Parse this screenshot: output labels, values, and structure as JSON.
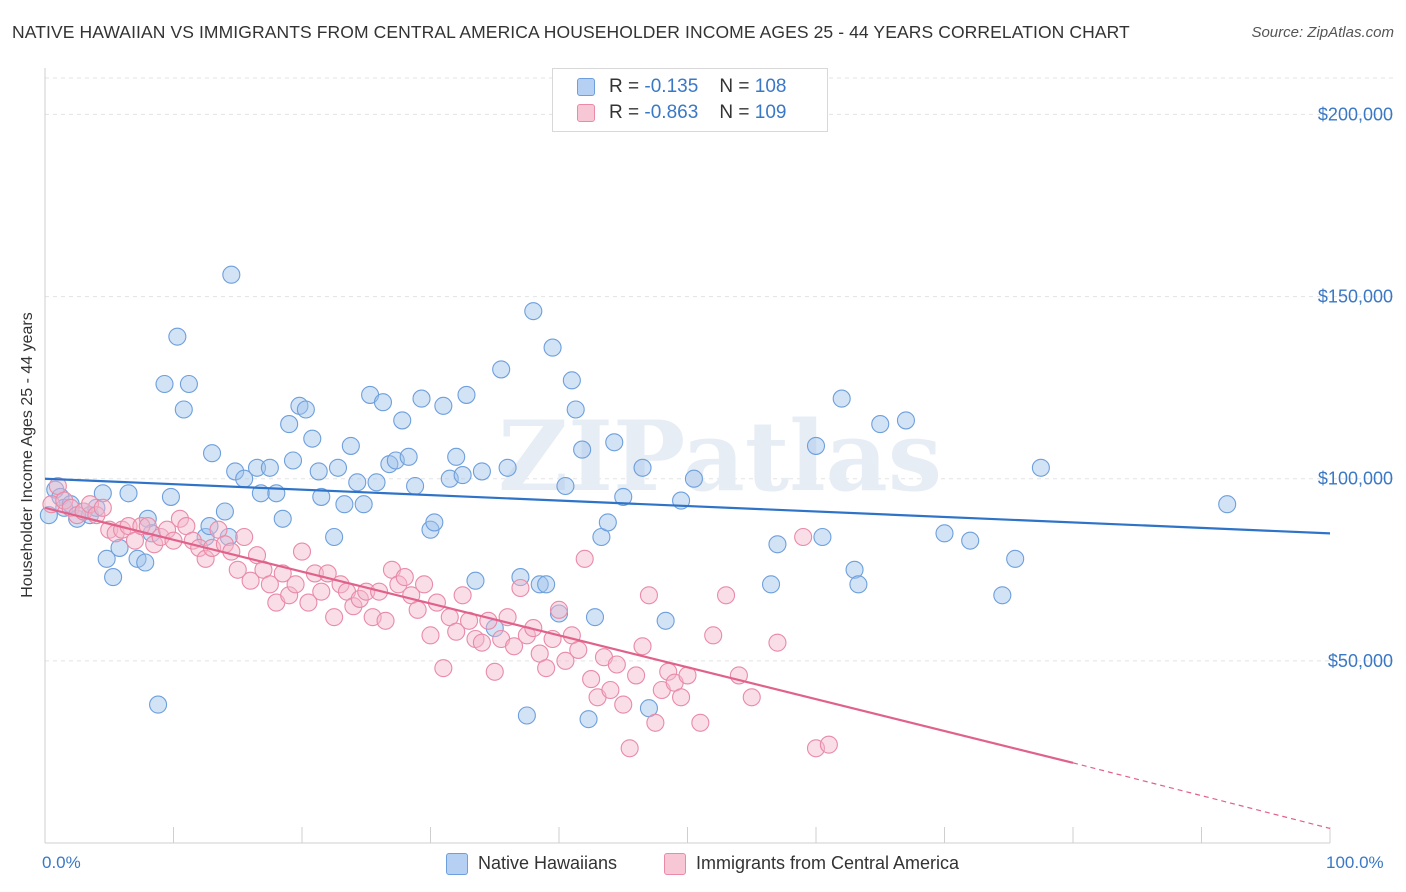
{
  "header": {
    "title": "NATIVE HAWAIIAN VS IMMIGRANTS FROM CENTRAL AMERICA HOUSEHOLDER INCOME AGES 25 - 44 YEARS CORRELATION CHART",
    "source": "Source: ZipAtlas.com"
  },
  "watermark": "ZIPatlas",
  "chart_data": {
    "type": "scatter",
    "title": "NATIVE HAWAIIAN VS IMMIGRANTS FROM CENTRAL AMERICA HOUSEHOLDER INCOME AGES 25 - 44 YEARS CORRELATION CHART",
    "xlabel": "",
    "ylabel": "Householder Income Ages 25 - 44 years",
    "xlim": [
      0,
      100
    ],
    "ylim": [
      0,
      210000
    ],
    "x_tick_labels": [
      "0.0%",
      "100.0%"
    ],
    "y_ticks": [
      50000,
      100000,
      150000,
      200000
    ],
    "y_tick_labels": [
      "$50,000",
      "$100,000",
      "$150,000",
      "$200,000"
    ],
    "grid": true,
    "legend_placement": "top-center",
    "series": [
      {
        "name": "Native Hawaiians",
        "color": "#9ec0ec",
        "edge": "#6d9fdc",
        "line_color": "#2e73c8",
        "R": "-0.135",
        "N": "108",
        "trend": {
          "x": [
            0,
            100
          ],
          "y": [
            100000,
            85000
          ]
        },
        "points": [
          [
            0.3,
            90000
          ],
          [
            0.8,
            97000
          ],
          [
            1.2,
            95000
          ],
          [
            1.5,
            92000
          ],
          [
            2,
            93000
          ],
          [
            2.5,
            89000
          ],
          [
            3,
            91000
          ],
          [
            3.5,
            90000
          ],
          [
            4,
            92000
          ],
          [
            4.5,
            96000
          ],
          [
            4.8,
            78000
          ],
          [
            5.3,
            73000
          ],
          [
            5.8,
            81000
          ],
          [
            6.5,
            96000
          ],
          [
            7.2,
            78000
          ],
          [
            7.8,
            77000
          ],
          [
            8,
            89000
          ],
          [
            8.3,
            85000
          ],
          [
            8.8,
            38000
          ],
          [
            9.3,
            126000
          ],
          [
            9.8,
            95000
          ],
          [
            10.3,
            139000
          ],
          [
            10.8,
            119000
          ],
          [
            11.2,
            126000
          ],
          [
            12.5,
            84000
          ],
          [
            12.8,
            87000
          ],
          [
            13,
            107000
          ],
          [
            14,
            91000
          ],
          [
            14.3,
            84000
          ],
          [
            14.5,
            156000
          ],
          [
            14.8,
            102000
          ],
          [
            15.5,
            100000
          ],
          [
            16.5,
            103000
          ],
          [
            16.8,
            96000
          ],
          [
            17.5,
            103000
          ],
          [
            18,
            96000
          ],
          [
            18.5,
            89000
          ],
          [
            19,
            115000
          ],
          [
            19.3,
            105000
          ],
          [
            19.8,
            120000
          ],
          [
            20.3,
            119000
          ],
          [
            20.8,
            111000
          ],
          [
            21.3,
            102000
          ],
          [
            21.5,
            95000
          ],
          [
            22.5,
            84000
          ],
          [
            22.8,
            103000
          ],
          [
            23.3,
            93000
          ],
          [
            23.8,
            109000
          ],
          [
            24.3,
            99000
          ],
          [
            24.8,
            93000
          ],
          [
            25.3,
            123000
          ],
          [
            25.8,
            99000
          ],
          [
            26.3,
            121000
          ],
          [
            26.8,
            104000
          ],
          [
            27.3,
            105000
          ],
          [
            27.8,
            116000
          ],
          [
            28.3,
            106000
          ],
          [
            28.8,
            98000
          ],
          [
            29.3,
            122000
          ],
          [
            30,
            86000
          ],
          [
            30.3,
            88000
          ],
          [
            31,
            120000
          ],
          [
            31.5,
            100000
          ],
          [
            32,
            106000
          ],
          [
            32.5,
            101000
          ],
          [
            32.8,
            123000
          ],
          [
            33.5,
            72000
          ],
          [
            34,
            102000
          ],
          [
            35,
            59000
          ],
          [
            35.5,
            130000
          ],
          [
            36,
            103000
          ],
          [
            37,
            73000
          ],
          [
            37.5,
            35000
          ],
          [
            38,
            146000
          ],
          [
            38.5,
            71000
          ],
          [
            39,
            71000
          ],
          [
            39.5,
            136000
          ],
          [
            40,
            63000
          ],
          [
            40.5,
            98000
          ],
          [
            41,
            127000
          ],
          [
            41.3,
            119000
          ],
          [
            41.8,
            108000
          ],
          [
            42.3,
            34000
          ],
          [
            42.8,
            62000
          ],
          [
            43.3,
            84000
          ],
          [
            43.8,
            88000
          ],
          [
            44.3,
            110000
          ],
          [
            45,
            95000
          ],
          [
            46.5,
            103000
          ],
          [
            47,
            37000
          ],
          [
            48.3,
            61000
          ],
          [
            49.5,
            94000
          ],
          [
            50.5,
            100000
          ],
          [
            56.5,
            71000
          ],
          [
            57,
            82000
          ],
          [
            60,
            109000
          ],
          [
            60.5,
            84000
          ],
          [
            62,
            122000
          ],
          [
            63,
            75000
          ],
          [
            63.3,
            71000
          ],
          [
            65,
            115000
          ],
          [
            67,
            116000
          ],
          [
            70,
            85000
          ],
          [
            72,
            83000
          ],
          [
            74.5,
            68000
          ],
          [
            75.5,
            78000
          ],
          [
            77.5,
            103000
          ],
          [
            92,
            93000
          ]
        ]
      },
      {
        "name": "Immigrants from Central America",
        "color": "#f5b5c9",
        "edge": "#e98aa8",
        "line_color": "#e0628b",
        "R": "-0.863",
        "N": "109",
        "trend": {
          "x": [
            0,
            80
          ],
          "y": [
            92000,
            22000
          ]
        },
        "trend_dashed": {
          "x": [
            80,
            100
          ],
          "y": [
            22000,
            4000
          ]
        },
        "points": [
          [
            0.5,
            93000
          ],
          [
            1,
            98000
          ],
          [
            1.5,
            94000
          ],
          [
            2,
            92000
          ],
          [
            2.5,
            90000
          ],
          [
            3,
            91000
          ],
          [
            3.5,
            93000
          ],
          [
            4,
            90000
          ],
          [
            4.5,
            92000
          ],
          [
            5,
            86000
          ],
          [
            5.5,
            85000
          ],
          [
            6,
            86000
          ],
          [
            6.5,
            87000
          ],
          [
            7,
            83000
          ],
          [
            7.5,
            87000
          ],
          [
            8,
            87000
          ],
          [
            8.5,
            82000
          ],
          [
            9,
            84000
          ],
          [
            9.5,
            86000
          ],
          [
            10,
            83000
          ],
          [
            10.5,
            89000
          ],
          [
            11,
            87000
          ],
          [
            11.5,
            83000
          ],
          [
            12,
            81000
          ],
          [
            12.5,
            78000
          ],
          [
            13,
            81000
          ],
          [
            13.5,
            86000
          ],
          [
            14,
            82000
          ],
          [
            14.5,
            80000
          ],
          [
            15,
            75000
          ],
          [
            15.5,
            84000
          ],
          [
            16,
            72000
          ],
          [
            16.5,
            79000
          ],
          [
            17,
            75000
          ],
          [
            17.5,
            71000
          ],
          [
            18,
            66000
          ],
          [
            18.5,
            74000
          ],
          [
            19,
            68000
          ],
          [
            19.5,
            71000
          ],
          [
            20,
            80000
          ],
          [
            20.5,
            66000
          ],
          [
            21,
            74000
          ],
          [
            21.5,
            69000
          ],
          [
            22,
            74000
          ],
          [
            22.5,
            62000
          ],
          [
            23,
            71000
          ],
          [
            23.5,
            69000
          ],
          [
            24,
            65000
          ],
          [
            24.5,
            67000
          ],
          [
            25,
            69000
          ],
          [
            25.5,
            62000
          ],
          [
            26,
            69000
          ],
          [
            26.5,
            61000
          ],
          [
            27,
            75000
          ],
          [
            27.5,
            71000
          ],
          [
            28,
            73000
          ],
          [
            28.5,
            68000
          ],
          [
            29,
            64000
          ],
          [
            29.5,
            71000
          ],
          [
            30,
            57000
          ],
          [
            30.5,
            66000
          ],
          [
            31,
            48000
          ],
          [
            31.5,
            62000
          ],
          [
            32,
            58000
          ],
          [
            32.5,
            68000
          ],
          [
            33,
            61000
          ],
          [
            33.5,
            56000
          ],
          [
            34,
            55000
          ],
          [
            34.5,
            61000
          ],
          [
            35,
            47000
          ],
          [
            35.5,
            56000
          ],
          [
            36,
            62000
          ],
          [
            36.5,
            54000
          ],
          [
            37,
            70000
          ],
          [
            37.5,
            57000
          ],
          [
            38,
            59000
          ],
          [
            38.5,
            52000
          ],
          [
            39,
            48000
          ],
          [
            39.5,
            56000
          ],
          [
            40,
            64000
          ],
          [
            40.5,
            50000
          ],
          [
            41,
            57000
          ],
          [
            41.5,
            53000
          ],
          [
            42,
            78000
          ],
          [
            42.5,
            45000
          ],
          [
            43,
            40000
          ],
          [
            43.5,
            51000
          ],
          [
            44,
            42000
          ],
          [
            44.5,
            49000
          ],
          [
            45,
            38000
          ],
          [
            45.5,
            26000
          ],
          [
            46,
            46000
          ],
          [
            46.5,
            54000
          ],
          [
            47,
            68000
          ],
          [
            47.5,
            33000
          ],
          [
            48,
            42000
          ],
          [
            48.5,
            47000
          ],
          [
            49,
            44000
          ],
          [
            49.5,
            40000
          ],
          [
            50,
            46000
          ],
          [
            51,
            33000
          ],
          [
            52,
            57000
          ],
          [
            53,
            68000
          ],
          [
            54,
            46000
          ],
          [
            55,
            40000
          ],
          [
            57,
            55000
          ],
          [
            59,
            84000
          ],
          [
            60,
            26000
          ],
          [
            61,
            27000
          ]
        ]
      }
    ]
  },
  "legend": {
    "r_label": "R =",
    "n_label": "N ="
  }
}
